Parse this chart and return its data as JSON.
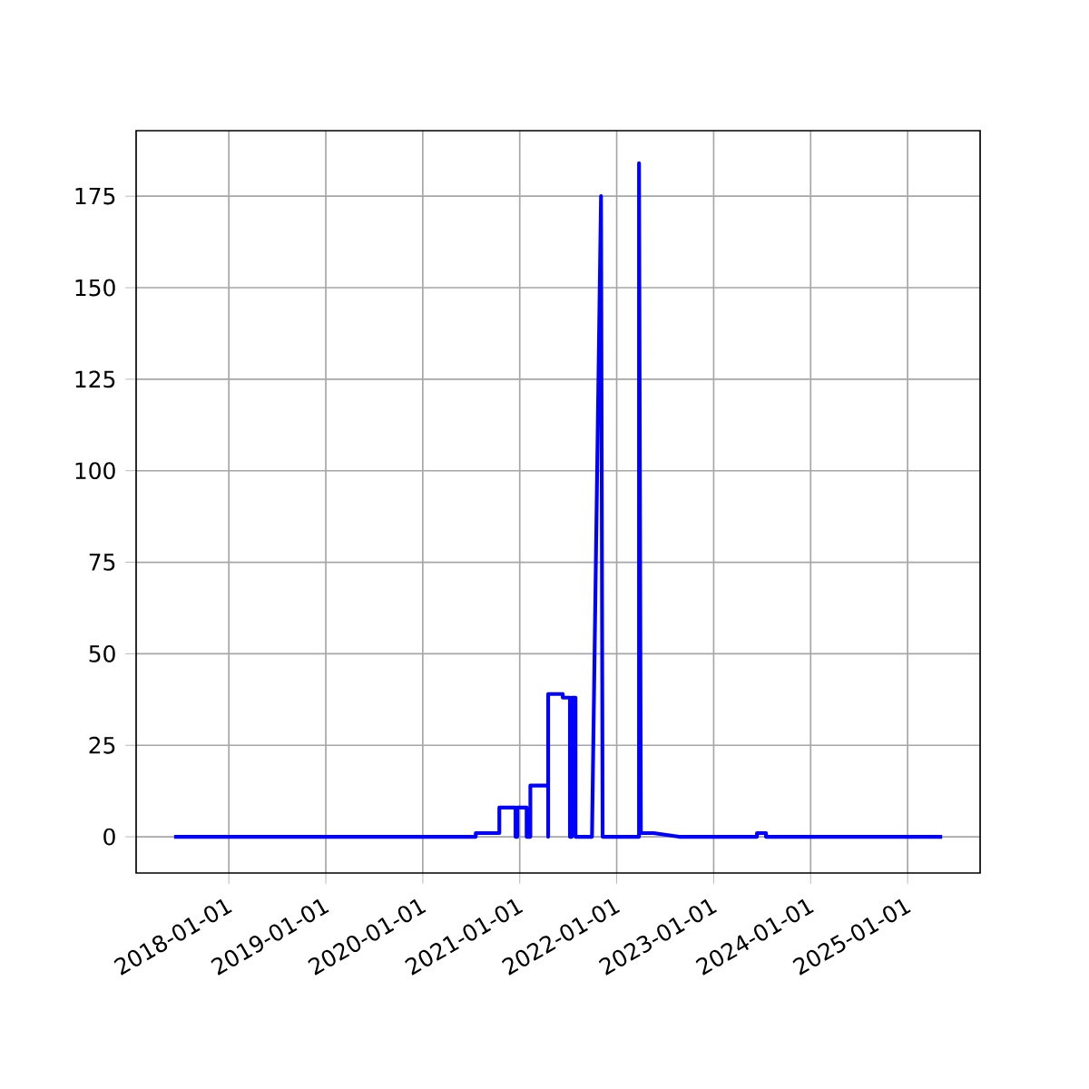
{
  "chart_data": {
    "type": "line",
    "color": "#0000ff",
    "grid": true,
    "line_style": "solid",
    "x": [
      "2017-06-09",
      "2020-07-19",
      "2020-07-19",
      "2020-10-16",
      "2020-10-16",
      "2020-12-16",
      "2020-12-16",
      "2020-12-23",
      "2020-12-23",
      "2021-01-27",
      "2021-01-27",
      "2021-02-10",
      "2021-02-10",
      "2021-04-18",
      "2021-04-18",
      "2021-04-18",
      "2021-06-12",
      "2021-06-12",
      "2021-07-09",
      "2021-07-09",
      "2021-07-16",
      "2021-07-16",
      "2021-07-30",
      "2021-07-30",
      "2021-09-30",
      "2021-11-03",
      "2021-11-09",
      "2022-03-26",
      "2022-03-26",
      "2022-04-02",
      "2022-05-20",
      "2022-08-24",
      "2023-06-13",
      "2023-06-13",
      "2023-07-17",
      "2023-07-17",
      "2025-05-11"
    ],
    "values": [
      0,
      0,
      1,
      1,
      8,
      8,
      0,
      0,
      8,
      8,
      0,
      0,
      14,
      14,
      0,
      39,
      39,
      38,
      38,
      0,
      0,
      38,
      38,
      0,
      0,
      175,
      0,
      0,
      184,
      1,
      1,
      0,
      0,
      1,
      1,
      0,
      0
    ],
    "xlim": [
      "2017-01-17",
      "2025-10-01"
    ],
    "ylim": [
      -9.9,
      192.9
    ],
    "xticks": [
      {
        "value": "2018-01-01",
        "label": "2018-01-01"
      },
      {
        "value": "2019-01-01",
        "label": "2019-01-01"
      },
      {
        "value": "2020-01-01",
        "label": "2020-01-01"
      },
      {
        "value": "2021-01-01",
        "label": "2021-01-01"
      },
      {
        "value": "2022-01-01",
        "label": "2022-01-01"
      },
      {
        "value": "2023-01-01",
        "label": "2023-01-01"
      },
      {
        "value": "2024-01-01",
        "label": "2024-01-01"
      },
      {
        "value": "2025-01-01",
        "label": "2025-01-01"
      }
    ],
    "yticks": [
      0,
      25,
      50,
      75,
      100,
      125,
      150,
      175
    ]
  }
}
